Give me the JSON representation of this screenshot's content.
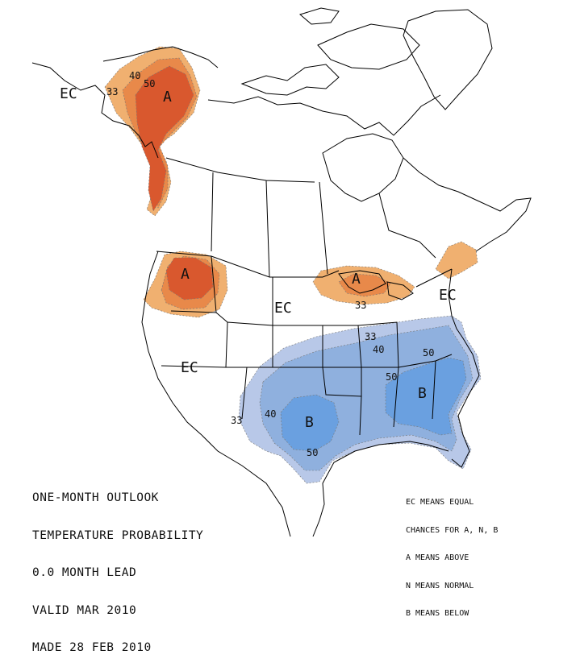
{
  "title_lines": [
    "ONE-MONTH OUTLOOK",
    "TEMPERATURE PROBABILITY",
    "0.0 MONTH LEAD",
    "VALID MAR 2010",
    "MADE 28 FEB 2010"
  ],
  "legend_lines": [
    "EC MEANS EQUAL",
    "CHANCES FOR A, N, B",
    "A MEANS ABOVE",
    "N MEANS NORMAL",
    "B MEANS BELOW"
  ],
  "category_labels": {
    "ec_alaska": "EC",
    "ec_plains": "EC",
    "ec_southwest": "EC",
    "ec_northeast": "EC",
    "a_alaska": "A",
    "a_northwest": "A",
    "a_great_lakes": "A",
    "b_texas": "B",
    "b_southeast": "B"
  },
  "probability_labels": {
    "alaska_33": "33",
    "alaska_40": "40",
    "alaska_50": "50",
    "lakes_33": "33",
    "south_33": "33",
    "south_40": "40",
    "south_50": "50",
    "east_50": "50",
    "ozark_40": "40",
    "texas_40": "40",
    "texas_50": "50",
    "sw_33": "33"
  },
  "colors": {
    "above_33": "#f0b070",
    "above_40": "#e8894a",
    "above_50": "#d9582e",
    "below_33": "#b8c8e8",
    "below_40": "#8fb0de",
    "below_50": "#6aa0e0",
    "map_lines": "#000000",
    "background": "#ffffff"
  }
}
